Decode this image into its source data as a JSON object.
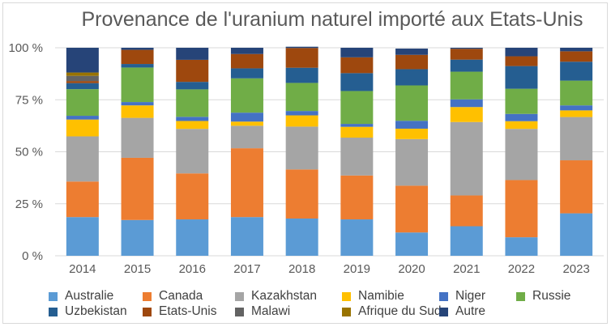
{
  "chart_data": {
    "type": "bar",
    "stacked": true,
    "title": "Provenance de l'uranium naturel importé aux Etats-Unis",
    "xlabel": "",
    "ylabel": "",
    "ylim": [
      0,
      100
    ],
    "y_ticks": [
      "0 %",
      "25 %",
      "50 %",
      "75 %",
      "100 %"
    ],
    "grid": true,
    "legend_position": "bottom",
    "categories": [
      "2014",
      "2015",
      "2016",
      "2017",
      "2018",
      "2019",
      "2020",
      "2021",
      "2022",
      "2023"
    ],
    "series": [
      {
        "name": "Australie",
        "color": "#5b9bd5",
        "values": [
          18.6,
          17.2,
          17.5,
          18.6,
          17.9,
          17.5,
          11.2,
          14.2,
          8.9,
          20.4
        ]
      },
      {
        "name": "Canada",
        "color": "#ed7d31",
        "values": [
          17.1,
          29.9,
          22.1,
          33.1,
          23.6,
          21.1,
          22.5,
          14.8,
          27.5,
          25.5
        ]
      },
      {
        "name": "Kazakhstan",
        "color": "#a5a5a5",
        "values": [
          21.7,
          19.2,
          21.4,
          10.8,
          20.6,
          18.2,
          22.4,
          35.3,
          24.6,
          20.8
        ]
      },
      {
        "name": "Namibie",
        "color": "#ffc000",
        "values": [
          8.1,
          6.0,
          3.8,
          2.0,
          5.4,
          5.2,
          5.0,
          7.2,
          3.7,
          3.2
        ]
      },
      {
        "name": "Niger",
        "color": "#4472c4",
        "values": [
          1.8,
          1.6,
          2.0,
          4.3,
          2.1,
          1.4,
          3.8,
          3.7,
          3.5,
          2.4
        ]
      },
      {
        "name": "Russie",
        "color": "#70ad47",
        "values": [
          12.8,
          16.6,
          13.2,
          16.5,
          13.5,
          15.8,
          17.0,
          13.3,
          12.1,
          11.9
        ]
      },
      {
        "name": "Uzbekistan",
        "color": "#255e91",
        "values": [
          2.9,
          1.7,
          3.6,
          4.8,
          7.3,
          8.6,
          7.8,
          5.8,
          10.9,
          9.1
        ]
      },
      {
        "name": "Etats-Unis",
        "color": "#9e480e",
        "values": [
          1.0,
          6.8,
          10.6,
          6.9,
          9.5,
          7.6,
          6.9,
          5.2,
          4.7,
          5.0
        ]
      },
      {
        "name": "Malawi",
        "color": "#636363",
        "values": [
          2.5,
          0,
          0,
          0,
          0,
          0,
          0,
          0,
          0,
          0
        ]
      },
      {
        "name": "Afrique du Sud",
        "color": "#997300",
        "values": [
          1.6,
          0,
          0,
          0,
          0,
          0,
          0,
          0,
          0,
          0
        ]
      },
      {
        "name": "Autre",
        "color": "#264478",
        "values": [
          11.9,
          1.0,
          5.8,
          3.0,
          0.6,
          4.6,
          3.0,
          0.5,
          4.1,
          1.7
        ]
      }
    ]
  }
}
